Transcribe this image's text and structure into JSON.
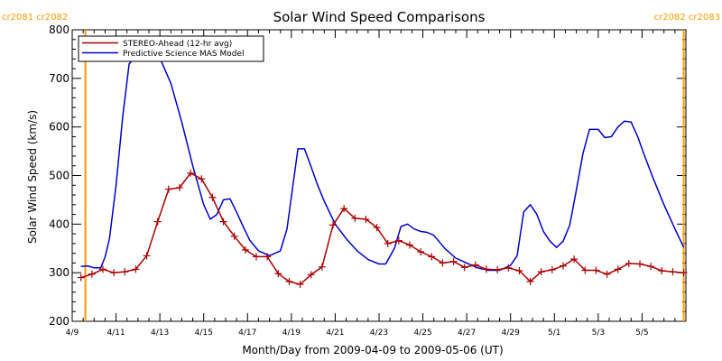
{
  "chart_data": {
    "type": "line",
    "title": "Solar Wind Speed Comparisons",
    "xlabel": "Month/Day from 2009-04-09 to 2009-05-06 (UT)",
    "ylabel": "Solar Wind Speed (km/s)",
    "xlim": [
      0,
      28
    ],
    "ylim": [
      200,
      800
    ],
    "x_ticks": [
      {
        "x": 0,
        "label": "4/9"
      },
      {
        "x": 2,
        "label": "4/11"
      },
      {
        "x": 4,
        "label": "4/13"
      },
      {
        "x": 6,
        "label": "4/15"
      },
      {
        "x": 8,
        "label": "4/17"
      },
      {
        "x": 10,
        "label": "4/19"
      },
      {
        "x": 12,
        "label": "4/21"
      },
      {
        "x": 14,
        "label": "4/23"
      },
      {
        "x": 16,
        "label": "4/25"
      },
      {
        "x": 18,
        "label": "4/27"
      },
      {
        "x": 20,
        "label": "4/29"
      },
      {
        "x": 22,
        "label": "5/1"
      },
      {
        "x": 24,
        "label": "5/3"
      },
      {
        "x": 26,
        "label": "5/5"
      }
    ],
    "y_ticks": [
      200,
      300,
      400,
      500,
      600,
      700,
      800
    ],
    "legend_position": "top-left",
    "rotation_markers": [
      {
        "x": 0.6,
        "labels": [
          "cr2081",
          "cr2082"
        ]
      },
      {
        "x": 27.9,
        "labels": [
          "cr2082",
          "cr2083"
        ]
      }
    ],
    "series": [
      {
        "name": "STEREO-Ahead (12-hr avg)",
        "color": "#aa0000",
        "marker": "plus",
        "x": [
          0.4,
          0.9,
          1.4,
          1.9,
          2.4,
          2.9,
          3.4,
          3.9,
          4.4,
          4.9,
          5.4,
          5.9,
          6.4,
          6.9,
          7.4,
          7.9,
          8.4,
          8.9,
          9.4,
          9.9,
          10.4,
          10.9,
          11.4,
          11.9,
          12.4,
          12.9,
          13.4,
          13.9,
          14.4,
          14.9,
          15.4,
          15.9,
          16.4,
          16.9,
          17.4,
          17.9,
          18.4,
          18.9,
          19.4,
          19.9,
          20.4,
          20.9,
          21.4,
          21.9,
          22.4,
          22.9,
          23.4,
          23.9,
          24.4,
          24.9,
          25.4,
          25.9,
          26.4,
          26.9,
          27.4,
          27.9
        ],
        "values": [
          290,
          297,
          307,
          300,
          302,
          307,
          335,
          405,
          472,
          475,
          505,
          493,
          455,
          405,
          375,
          347,
          333,
          333,
          298,
          282,
          276,
          296,
          312,
          398,
          432,
          412,
          410,
          393,
          360,
          366,
          357,
          343,
          333,
          320,
          323,
          311,
          316,
          307,
          306,
          310,
          304,
          282,
          302,
          306,
          314,
          328,
          305,
          305,
          297,
          307,
          319,
          318,
          313,
          304,
          302,
          300
        ]
      },
      {
        "name": "Predictive Science MAS Model",
        "color": "#0000cc",
        "marker": "none",
        "x": [
          0.4,
          0.7,
          1.0,
          1.3,
          1.5,
          1.7,
          2.0,
          2.3,
          2.6,
          3.0,
          3.5,
          4.0,
          4.5,
          5.0,
          5.5,
          6.0,
          6.3,
          6.6,
          6.9,
          7.2,
          7.5,
          7.8,
          8.1,
          8.5,
          9.0,
          9.5,
          9.8,
          10.3,
          10.6,
          10.9,
          11.2,
          11.5,
          12.0,
          12.5,
          13.0,
          13.5,
          14.0,
          14.3,
          14.7,
          15.0,
          15.3,
          15.6,
          15.9,
          16.2,
          16.5,
          17.0,
          17.5,
          18.0,
          18.5,
          19.0,
          19.5,
          20.0,
          20.3,
          20.6,
          20.9,
          21.2,
          21.5,
          21.8,
          22.1,
          22.4,
          22.7,
          23.0,
          23.3,
          23.6,
          24.0,
          24.3,
          24.6,
          24.9,
          25.2,
          25.5,
          25.8,
          26.1,
          26.5,
          27.0,
          27.5,
          27.9
        ],
        "values": [
          313,
          314,
          310,
          310,
          332,
          370,
          480,
          620,
          730,
          750,
          752,
          742,
          690,
          610,
          520,
          440,
          410,
          420,
          450,
          452,
          425,
          395,
          367,
          345,
          335,
          345,
          390,
          555,
          555,
          518,
          480,
          447,
          400,
          370,
          345,
          327,
          318,
          318,
          350,
          395,
          400,
          390,
          385,
          383,
          377,
          350,
          330,
          320,
          310,
          305,
          305,
          315,
          335,
          425,
          440,
          420,
          385,
          365,
          352,
          365,
          398,
          470,
          545,
          595,
          595,
          578,
          580,
          600,
          612,
          610,
          580,
          542,
          495,
          440,
          390,
          352
        ]
      }
    ]
  }
}
